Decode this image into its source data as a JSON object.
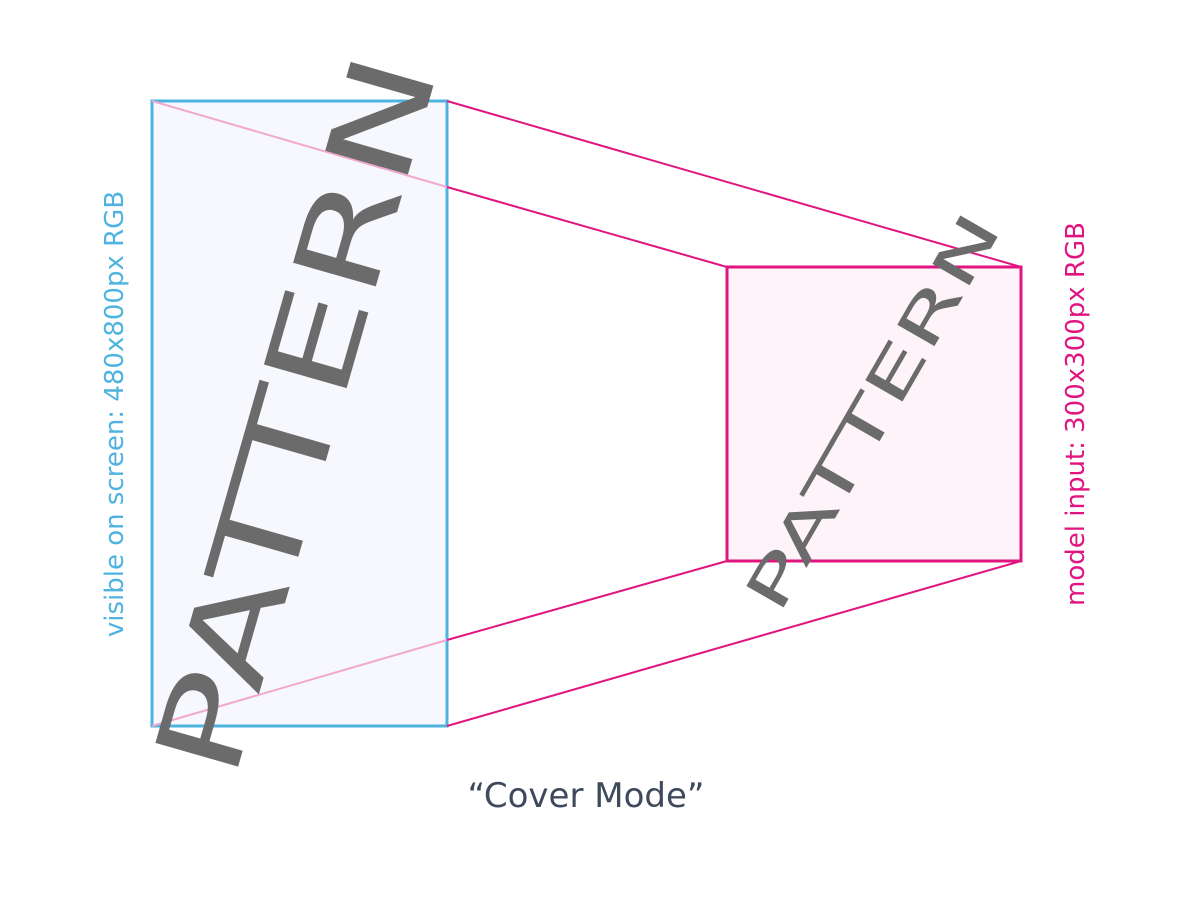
{
  "diagram": {
    "screen_box": {
      "label": "visible on screen: 480x800px RGB",
      "pattern_text": "PATTERN",
      "color": "#4fb3df",
      "fill": "#f6f8fd"
    },
    "model_box": {
      "label": "model input: 300x300px RGB",
      "pattern_text": "PATTERN",
      "color": "#e0157f",
      "fill": "#fdf3f9"
    },
    "caption": "“Cover Mode”",
    "pattern_color": "#6b6b6b",
    "caption_color": "#3e4a5c",
    "connector_color": "#e0157f",
    "connector_faint_color": "#f0a8cf"
  }
}
